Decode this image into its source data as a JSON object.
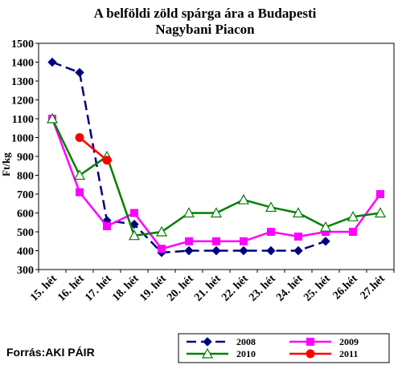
{
  "source": "Forrás:AKI PÁIR",
  "chart_data": {
    "type": "line",
    "title_lines": [
      "A belföldi zöld spárga ára a Budapesti",
      "Nagybani Piacon"
    ],
    "ylabel": "Ft/kg",
    "xlabel": "",
    "categories": [
      "15. hét",
      "16. hét",
      "17. hét",
      "18. hét",
      "19. hét",
      "20. hét",
      "21. hét",
      "22. hét",
      "23. hét",
      "24. hét",
      "25. hét",
      "26.hét",
      "27.hét"
    ],
    "ylim": [
      300,
      1500
    ],
    "ystep": 100,
    "grid": false,
    "legend_position": "bottom-right",
    "series": [
      {
        "name": "2008",
        "color": "#000080",
        "dash": true,
        "marker": "diamond",
        "values": [
          1400,
          1345,
          560,
          540,
          390,
          400,
          400,
          400,
          400,
          400,
          450,
          null,
          null
        ]
      },
      {
        "name": "2009",
        "color": "#FF00FF",
        "dash": false,
        "marker": "square",
        "values": [
          1100,
          710,
          530,
          600,
          410,
          450,
          450,
          450,
          500,
          475,
          500,
          500,
          700
        ]
      },
      {
        "name": "2010",
        "color": "#008000",
        "dash": false,
        "marker": "triangle",
        "values": [
          1100,
          800,
          900,
          480,
          500,
          600,
          600,
          670,
          630,
          600,
          525,
          580,
          600
        ]
      },
      {
        "name": "2011",
        "color": "#FF0000",
        "dash": false,
        "marker": "circle",
        "values": [
          null,
          1000,
          880,
          null,
          null,
          null,
          null,
          null,
          null,
          null,
          null,
          null,
          null
        ]
      }
    ]
  }
}
